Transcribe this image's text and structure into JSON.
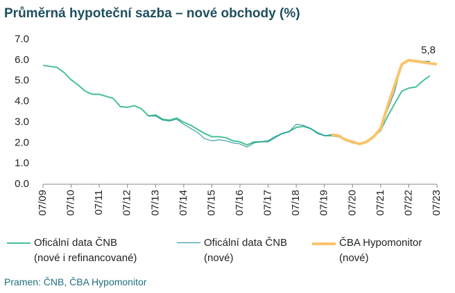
{
  "chart_data": {
    "type": "line",
    "title": "Průměrná hypoteční sazba – nové obchody (%)",
    "source": "Pramen: ČNB, ČBA Hypomonitor",
    "ylim": [
      0,
      7
    ],
    "yticks": [
      {
        "value": 0,
        "label": "0.0"
      },
      {
        "value": 1,
        "label": "1.0"
      },
      {
        "value": 2,
        "label": "2.0"
      },
      {
        "value": 3,
        "label": "3.0"
      },
      {
        "value": 4,
        "label": "4.0"
      },
      {
        "value": 5,
        "label": "5.0"
      },
      {
        "value": 6,
        "label": "6.0"
      },
      {
        "value": 7,
        "label": "7.0"
      }
    ],
    "xlim": [
      2009.5,
      2023.5
    ],
    "xticks": [
      {
        "value": 2009.5,
        "label": "07/09"
      },
      {
        "value": 2010.5,
        "label": "07/10"
      },
      {
        "value": 2011.5,
        "label": "07/11"
      },
      {
        "value": 2012.5,
        "label": "07/12"
      },
      {
        "value": 2013.5,
        "label": "07/13"
      },
      {
        "value": 2014.5,
        "label": "07/14"
      },
      {
        "value": 2015.5,
        "label": "07/15"
      },
      {
        "value": 2016.5,
        "label": "07/16"
      },
      {
        "value": 2017.5,
        "label": "07/17"
      },
      {
        "value": 2018.5,
        "label": "07/18"
      },
      {
        "value": 2019.5,
        "label": "07/19"
      },
      {
        "value": 2020.5,
        "label": "07/20"
      },
      {
        "value": 2021.5,
        "label": "07/21"
      },
      {
        "value": 2022.5,
        "label": "07/22"
      },
      {
        "value": 2023.5,
        "label": "07/23"
      }
    ],
    "series": [
      {
        "name": "Oficální data ČNB\n(nové i refinancované)",
        "color": "#45c193",
        "width": 2,
        "x": [
          2009.5,
          2009.75,
          2010.0,
          2010.25,
          2010.5,
          2010.75,
          2011.0,
          2011.25,
          2011.5,
          2011.75,
          2012.0,
          2012.25,
          2012.5,
          2012.75,
          2013.0,
          2013.25,
          2013.5,
          2013.75,
          2014.0,
          2014.25,
          2014.5,
          2014.75,
          2015.0,
          2015.25,
          2015.5,
          2015.75,
          2016.0,
          2016.25,
          2016.5,
          2016.75,
          2017.0,
          2017.25,
          2017.5,
          2017.75,
          2018.0,
          2018.25,
          2018.5,
          2018.75,
          2019.0,
          2019.25,
          2019.5,
          2019.75,
          2020.0,
          2020.25,
          2020.5,
          2020.75,
          2021.0,
          2021.25,
          2021.5,
          2021.75,
          2022.0,
          2022.25,
          2022.5,
          2022.75,
          2023.0,
          2023.25
        ],
        "values": [
          5.75,
          5.7,
          5.65,
          5.4,
          5.05,
          4.8,
          4.5,
          4.35,
          4.35,
          4.25,
          4.15,
          3.75,
          3.72,
          3.8,
          3.65,
          3.3,
          3.35,
          3.15,
          3.1,
          3.2,
          3.0,
          2.85,
          2.65,
          2.45,
          2.3,
          2.3,
          2.25,
          2.1,
          2.05,
          1.9,
          2.05,
          2.05,
          2.1,
          2.3,
          2.45,
          2.55,
          2.75,
          2.8,
          2.7,
          2.5,
          2.35,
          2.35,
          2.3,
          2.15,
          2.0,
          1.95,
          2.05,
          2.3,
          2.6,
          3.3,
          3.9,
          4.5,
          4.65,
          4.7,
          5.0,
          5.25
        ]
      },
      {
        "name": "Oficální data ČNB\n(nové)",
        "color": "#1b8c9c",
        "width": 1,
        "x": [
          2013.25,
          2013.5,
          2013.75,
          2014.0,
          2014.25,
          2014.5,
          2014.75,
          2015.0,
          2015.25,
          2015.5,
          2015.75,
          2016.0,
          2016.25,
          2016.5,
          2016.75,
          2017.0,
          2017.25,
          2017.5,
          2017.75,
          2018.0,
          2018.25,
          2018.5,
          2018.75,
          2019.0,
          2019.25,
          2019.5,
          2019.75,
          2020.0,
          2020.25,
          2020.5,
          2020.75,
          2021.0,
          2021.25,
          2021.5,
          2021.75,
          2022.0,
          2022.25,
          2022.5,
          2022.75,
          2023.0,
          2023.25
        ],
        "values": [
          3.3,
          3.3,
          3.1,
          3.05,
          3.15,
          2.9,
          2.7,
          2.5,
          2.2,
          2.1,
          2.15,
          2.1,
          2.0,
          1.95,
          1.8,
          2.0,
          2.05,
          2.05,
          2.25,
          2.45,
          2.55,
          2.9,
          2.85,
          2.7,
          2.45,
          2.35,
          2.4,
          2.3,
          2.1,
          2.0,
          1.95,
          2.05,
          2.3,
          2.65,
          3.6,
          4.5,
          5.8,
          5.95,
          6.0,
          5.95,
          5.95
        ]
      },
      {
        "name": "ČBA Hypomonitor\n(nové)",
        "color": "#f9c46b",
        "width": 4,
        "x": [
          2019.75,
          2020.0,
          2020.25,
          2020.5,
          2020.75,
          2021.0,
          2021.25,
          2021.5,
          2021.75,
          2022.0,
          2022.25,
          2022.5,
          2022.75,
          2023.0,
          2023.25,
          2023.5
        ],
        "values": [
          2.4,
          2.35,
          2.15,
          2.05,
          1.95,
          2.05,
          2.3,
          2.7,
          3.8,
          4.8,
          5.8,
          6.0,
          5.95,
          5.9,
          5.85,
          5.8
        ]
      }
    ],
    "annotations": [
      {
        "text": "5,8",
        "x": 2023.5,
        "y": 5.8
      }
    ]
  }
}
